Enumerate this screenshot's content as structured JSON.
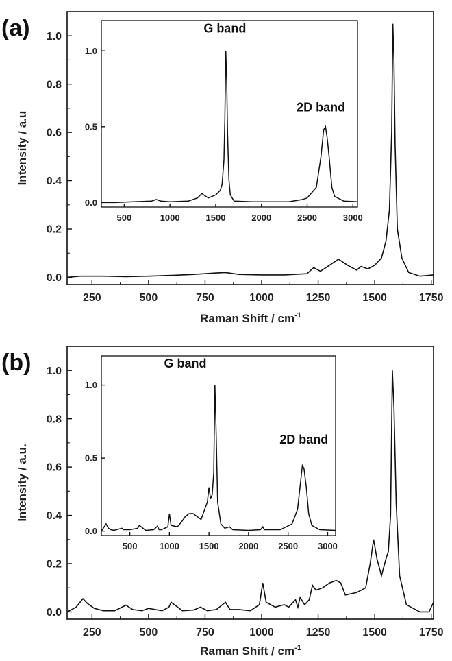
{
  "chart_data": [
    {
      "panel": "(a)",
      "type": "line",
      "xlabel": "Raman Shift / cm",
      "xlabel_sup": "-1",
      "ylabel": "Intensity / a.u",
      "xlim": [
        140,
        1760
      ],
      "ylim": [
        -0.03,
        1.1
      ],
      "xticks": [
        250,
        500,
        750,
        1000,
        1250,
        1500,
        1750
      ],
      "yticks": [
        0.0,
        0.2,
        0.4,
        0.6,
        0.8,
        1.0
      ],
      "ytick_labels": [
        "0.0",
        "0.2",
        "0.4",
        "0.6",
        "0.8",
        "1.0"
      ],
      "grid": false,
      "series": [
        {
          "x": [
            140,
            200,
            300,
            400,
            500,
            600,
            700,
            800,
            840,
            900,
            1000,
            1100,
            1200,
            1230,
            1260,
            1300,
            1340,
            1380,
            1420,
            1440,
            1470,
            1500,
            1530,
            1550,
            1565,
            1575,
            1580,
            1585,
            1590,
            1600,
            1620,
            1650,
            1700,
            1760
          ],
          "y": [
            0.0,
            0.005,
            0.005,
            0.003,
            0.005,
            0.008,
            0.012,
            0.018,
            0.02,
            0.012,
            0.01,
            0.01,
            0.015,
            0.04,
            0.025,
            0.05,
            0.075,
            0.05,
            0.03,
            0.045,
            0.035,
            0.05,
            0.08,
            0.15,
            0.28,
            0.6,
            1.05,
            0.9,
            0.55,
            0.2,
            0.08,
            0.02,
            0.005,
            0.01
          ]
        }
      ],
      "inset": {
        "xlim": [
          250,
          3050
        ],
        "ylim": [
          -0.03,
          1.2
        ],
        "xticks": [
          500,
          1000,
          1500,
          2000,
          2500,
          3000
        ],
        "yticks": [
          0.0,
          0.5,
          1.0
        ],
        "ytick_labels": [
          "0.0",
          "0.5",
          "1.0"
        ],
        "series": [
          {
            "x": [
              250,
              400,
              600,
              800,
              850,
              900,
              1000,
              1200,
              1300,
              1350,
              1380,
              1420,
              1500,
              1550,
              1570,
              1590,
              1600,
              1610,
              1620,
              1630,
              1645,
              1660,
              1700,
              1900,
              2100,
              2300,
              2450,
              2500,
              2600,
              2650,
              2680,
              2700,
              2720,
              2740,
              2770,
              2800,
              2900,
              3050
            ],
            "y": [
              0.0,
              0.0,
              0.005,
              0.01,
              0.02,
              0.01,
              0.005,
              0.01,
              0.03,
              0.06,
              0.045,
              0.03,
              0.05,
              0.08,
              0.12,
              0.28,
              0.55,
              1.0,
              0.8,
              0.45,
              0.15,
              0.05,
              0.01,
              0.005,
              0.005,
              0.005,
              0.02,
              0.03,
              0.1,
              0.3,
              0.48,
              0.5,
              0.42,
              0.3,
              0.1,
              0.04,
              0.01,
              0.005
            ]
          }
        ],
        "annotations": [
          {
            "text": "G band",
            "x": 1600,
            "y": 1.12
          },
          {
            "text": "2D band",
            "x": 2650,
            "y": 0.6
          }
        ]
      }
    },
    {
      "panel": "(b)",
      "type": "line",
      "xlabel": "Raman Shift / cm",
      "xlabel_sup": "-1",
      "ylabel": "Intensity / a.u.",
      "xlim": [
        140,
        1760
      ],
      "ylim": [
        -0.03,
        1.1
      ],
      "xticks": [
        250,
        500,
        750,
        1000,
        1250,
        1500,
        1750
      ],
      "yticks": [
        0.0,
        0.2,
        0.4,
        0.6,
        0.8,
        1.0
      ],
      "ytick_labels": [
        "0.0",
        "0.2",
        "0.4",
        "0.6",
        "0.8",
        "1.0"
      ],
      "grid": false,
      "series": [
        {
          "x": [
            140,
            180,
            210,
            230,
            260,
            300,
            350,
            400,
            430,
            470,
            500,
            560,
            590,
            600,
            650,
            700,
            730,
            760,
            800,
            840,
            860,
            900,
            950,
            990,
            1005,
            1020,
            1060,
            1100,
            1120,
            1150,
            1160,
            1170,
            1190,
            1210,
            1225,
            1240,
            1270,
            1300,
            1330,
            1350,
            1370,
            1420,
            1460,
            1480,
            1495,
            1510,
            1530,
            1550,
            1560,
            1570,
            1578,
            1585,
            1595,
            1610,
            1640,
            1700,
            1740,
            1760
          ],
          "y": [
            0.0,
            0.02,
            0.055,
            0.035,
            0.015,
            0.005,
            0.005,
            0.028,
            0.01,
            0.005,
            0.015,
            0.005,
            0.02,
            0.04,
            0.005,
            0.008,
            0.02,
            0.005,
            0.01,
            0.04,
            0.01,
            0.01,
            0.005,
            0.03,
            0.12,
            0.04,
            0.02,
            0.03,
            0.02,
            0.05,
            0.02,
            0.06,
            0.03,
            0.05,
            0.11,
            0.09,
            0.1,
            0.12,
            0.13,
            0.12,
            0.07,
            0.08,
            0.1,
            0.2,
            0.3,
            0.22,
            0.15,
            0.22,
            0.25,
            0.4,
            1.0,
            0.85,
            0.45,
            0.15,
            0.03,
            0.0,
            0.0,
            0.04
          ]
        }
      ],
      "inset": {
        "xlim": [
          140,
          3100
        ],
        "ylim": [
          -0.03,
          1.2
        ],
        "xticks": [
          500,
          1000,
          1500,
          2000,
          2500,
          3000
        ],
        "yticks": [
          0.0,
          0.5,
          1.0
        ],
        "ytick_labels": [
          "0.0",
          "0.5",
          "1.0"
        ],
        "series": [
          {
            "x": [
              140,
              200,
              230,
              260,
              300,
              400,
              420,
              500,
              600,
              620,
              700,
              800,
              850,
              870,
              900,
              980,
              1000,
              1020,
              1100,
              1150,
              1200,
              1250,
              1300,
              1350,
              1400,
              1480,
              1500,
              1520,
              1540,
              1560,
              1575,
              1590,
              1610,
              1650,
              1700,
              1760,
              1800,
              2000,
              2150,
              2180,
              2200,
              2400,
              2550,
              2620,
              2660,
              2680,
              2700,
              2730,
              2760,
              2800,
              2900,
              3100
            ],
            "y": [
              0.0,
              0.05,
              0.02,
              0.01,
              0.005,
              0.02,
              0.01,
              0.01,
              0.02,
              0.04,
              0.005,
              0.01,
              0.035,
              0.01,
              0.01,
              0.03,
              0.12,
              0.04,
              0.03,
              0.06,
              0.1,
              0.12,
              0.12,
              0.1,
              0.08,
              0.2,
              0.3,
              0.22,
              0.25,
              0.4,
              1.0,
              0.7,
              0.2,
              0.05,
              0.02,
              0.03,
              0.01,
              0.005,
              0.01,
              0.03,
              0.01,
              0.01,
              0.05,
              0.15,
              0.35,
              0.45,
              0.43,
              0.3,
              0.12,
              0.04,
              0.01,
              0.005
            ]
          }
        ],
        "annotations": [
          {
            "text": "G band",
            "x": 1200,
            "y": 1.12
          },
          {
            "text": "2D band",
            "x": 2700,
            "y": 0.6
          }
        ]
      }
    }
  ]
}
